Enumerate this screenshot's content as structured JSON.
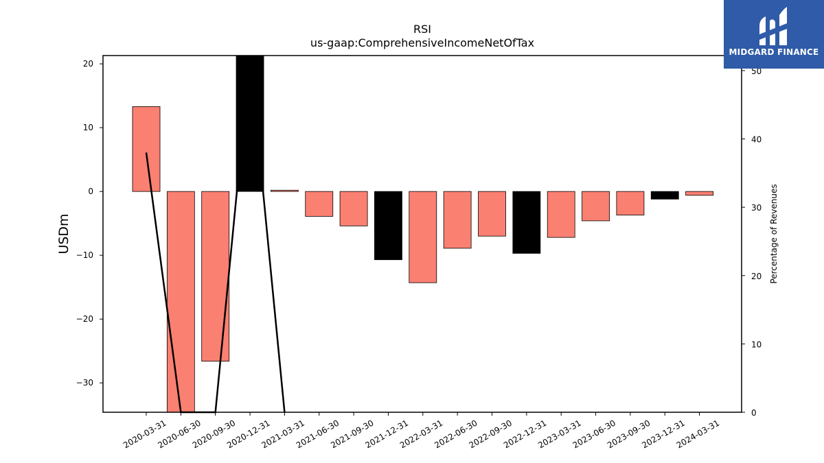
{
  "chart_data": {
    "type": "bar",
    "title": "RSI",
    "subtitle": "us-gaap:ComprehensiveIncomeNetOfTax",
    "ylabel": "USDm",
    "y2label": "Percentage of Revenues",
    "categories": [
      "2020-03-31",
      "2020-06-30",
      "2020-09-30",
      "2020-12-31",
      "2021-03-31",
      "2021-06-30",
      "2021-09-30",
      "2021-12-31",
      "2022-03-31",
      "2022-06-30",
      "2022-09-30",
      "2022-12-31",
      "2023-03-31",
      "2023-06-30",
      "2023-09-30",
      "2023-12-31",
      "2024-03-31"
    ],
    "series": [
      {
        "values": [
          13.3,
          -34.6,
          -26.6,
          21.3,
          0.2,
          -3.9,
          -5.4,
          -10.7,
          -14.3,
          -8.9,
          -7.0,
          -9.7,
          -7.2,
          -4.6,
          -3.7,
          -1.2,
          -0.6
        ],
        "colors": [
          "#fa8072",
          "#fa8072",
          "#fa8072",
          "#000000",
          "#fa8072",
          "#fa8072",
          "#fa8072",
          "#000000",
          "#fa8072",
          "#fa8072",
          "#fa8072",
          "#000000",
          "#fa8072",
          "#fa8072",
          "#fa8072",
          "#000000",
          "#fa8072"
        ]
      },
      {
        "axis": "right",
        "type": "line",
        "color": "#000000",
        "x": [
          "2020-03-31",
          "2020-06-30",
          "2020-09-30",
          "2020-12-31",
          "2021-03-31"
        ],
        "values": [
          38,
          0,
          0,
          52,
          0
        ]
      }
    ],
    "ylim": [
      -34.6,
      21.3
    ],
    "yticks": [
      20,
      10,
      0,
      -10,
      -20,
      -30
    ],
    "y2lim": [
      0,
      52.2
    ],
    "y2ticks": [
      0,
      10,
      20,
      30,
      40,
      50
    ],
    "grid": false,
    "legend": "none"
  },
  "logo": {
    "text": "MIDGARD FINANCE",
    "color": "#2f5ba8"
  }
}
